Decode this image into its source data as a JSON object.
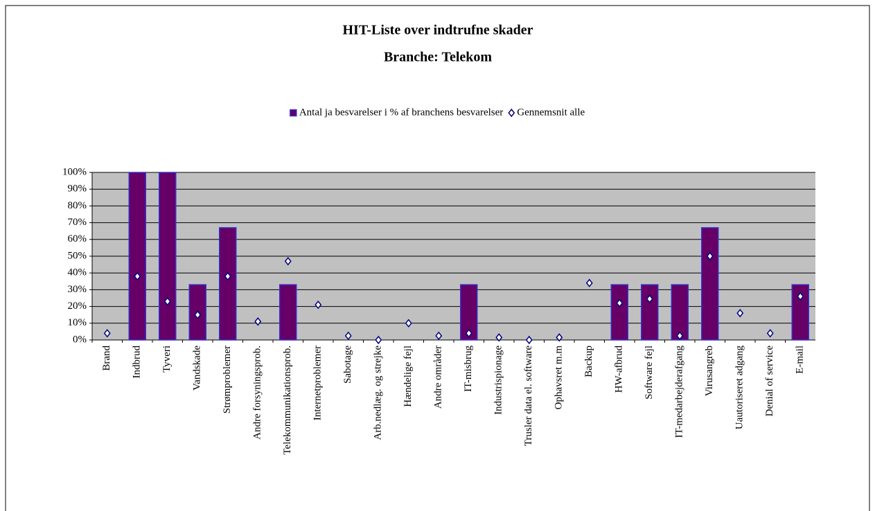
{
  "chart_data": {
    "type": "bar",
    "title": "HIT-Liste over indtrufne skader",
    "subtitle": "Branche: Telekom",
    "categories": [
      "Brand",
      "Indbrud",
      "Tyveri",
      "Vandskade",
      "Strømproblemer",
      "Andre forsyningsprob.",
      "Telekommunikationsprob.",
      "Internetproblemer",
      "Sabotage",
      "Arb.nedlæg. og strejke",
      "Hændelige fejl",
      "Andre områder",
      "IT-misbrug",
      "Industrispionage",
      "Trusler data el. software",
      "Ophavsret m.m",
      "Backup",
      "HW-afbrud",
      "Software fejl",
      "IT-medarbejderafgang",
      "Virusangreb",
      "Uautoriseret adgang",
      "Denial of service",
      "E-mail"
    ],
    "series": [
      {
        "name": "Antal ja besvarelser i % af branchens besvarelser",
        "type": "bar",
        "color": "#660066",
        "values": [
          0,
          100,
          100,
          33,
          67,
          0,
          33,
          0,
          0,
          0,
          0,
          0,
          33,
          0,
          0,
          0,
          0,
          33,
          33,
          33,
          67,
          0,
          0,
          33
        ]
      },
      {
        "name": "Gennemsnit alle",
        "type": "scatter",
        "color": "#000080",
        "values": [
          4,
          38,
          23,
          15,
          38,
          11,
          47,
          21,
          2.5,
          0,
          10,
          2.5,
          4,
          1.5,
          0,
          1.5,
          34,
          22,
          24.5,
          2.5,
          50,
          16,
          4,
          26
        ]
      }
    ],
    "ylim": [
      0,
      100
    ],
    "yticks": [
      {
        "value": 0,
        "label": "0%"
      },
      {
        "value": 10,
        "label": "10%"
      },
      {
        "value": 20,
        "label": "20%"
      },
      {
        "value": 30,
        "label": "30%"
      },
      {
        "value": 40,
        "label": "40%"
      },
      {
        "value": 50,
        "label": "50%"
      },
      {
        "value": 60,
        "label": "60%"
      },
      {
        "value": 70,
        "label": "70%"
      },
      {
        "value": 80,
        "label": "80%"
      },
      {
        "value": 90,
        "label": "90%"
      },
      {
        "value": 100,
        "label": "100%"
      }
    ],
    "grid": true
  }
}
